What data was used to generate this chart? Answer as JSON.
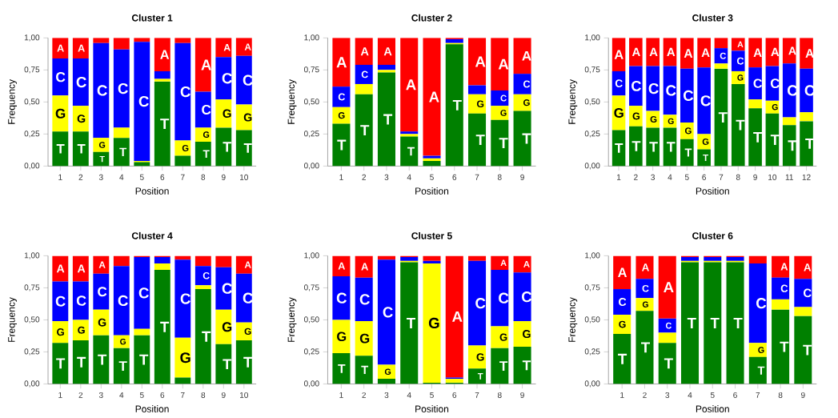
{
  "chart_data": [
    {
      "type": "bar",
      "stacked": true,
      "title": "Cluster 1",
      "xlabel": "Position",
      "ylabel": "Frequency",
      "categories": [
        "1",
        "2",
        "3",
        "4",
        "5",
        "6",
        "7",
        "8",
        "9",
        "10"
      ],
      "ylim": [
        0,
        1
      ],
      "yticks": [
        {
          "value": 0,
          "label": "0,00"
        },
        {
          "value": 0.25,
          "label": "0,25"
        },
        {
          "value": 0.5,
          "label": "0,50"
        },
        {
          "value": 0.75,
          "label": "0,75"
        },
        {
          "value": 1,
          "label": "1,00"
        }
      ],
      "series": [
        {
          "name": "T",
          "color": "#008000",
          "values": [
            0.27,
            0.27,
            0.11,
            0.22,
            0.03,
            0.66,
            0.08,
            0.19,
            0.3,
            0.28
          ]
        },
        {
          "name": "G",
          "color": "#ffff00",
          "values": [
            0.28,
            0.2,
            0.11,
            0.08,
            0.01,
            0.02,
            0.12,
            0.11,
            0.22,
            0.2
          ]
        },
        {
          "name": "C",
          "color": "#0000ff",
          "values": [
            0.29,
            0.37,
            0.74,
            0.61,
            0.93,
            0.06,
            0.76,
            0.28,
            0.33,
            0.38
          ]
        },
        {
          "name": "A",
          "color": "#ff0000",
          "values": [
            0.16,
            0.16,
            0.04,
            0.09,
            0.03,
            0.26,
            0.04,
            0.42,
            0.15,
            0.14
          ]
        }
      ]
    },
    {
      "type": "bar",
      "stacked": true,
      "title": "Cluster 2",
      "xlabel": "Position",
      "ylabel": "Frequency",
      "categories": [
        "1",
        "2",
        "3",
        "4",
        "5",
        "6",
        "7",
        "8",
        "9"
      ],
      "ylim": [
        0,
        1
      ],
      "yticks": [
        {
          "value": 0,
          "label": "0,00"
        },
        {
          "value": 0.25,
          "label": "0,25"
        },
        {
          "value": 0.5,
          "label": "0,50"
        },
        {
          "value": 0.75,
          "label": "0,75"
        },
        {
          "value": 1,
          "label": "1,00"
        }
      ],
      "series": [
        {
          "name": "T",
          "color": "#008000",
          "values": [
            0.33,
            0.56,
            0.73,
            0.23,
            0.04,
            0.95,
            0.41,
            0.36,
            0.43
          ]
        },
        {
          "name": "G",
          "color": "#ffff00",
          "values": [
            0.13,
            0.08,
            0.02,
            0.02,
            0.02,
            0.01,
            0.15,
            0.11,
            0.13
          ]
        },
        {
          "name": "C",
          "color": "#0000ff",
          "values": [
            0.16,
            0.15,
            0.04,
            0.02,
            0.02,
            0.03,
            0.07,
            0.12,
            0.16
          ]
        },
        {
          "name": "A",
          "color": "#ff0000",
          "values": [
            0.38,
            0.21,
            0.21,
            0.73,
            0.92,
            0.01,
            0.37,
            0.41,
            0.28
          ]
        }
      ]
    },
    {
      "type": "bar",
      "stacked": true,
      "title": "Cluster 3",
      "xlabel": "Position",
      "ylabel": "Frequency",
      "categories": [
        "1",
        "2",
        "3",
        "4",
        "5",
        "6",
        "7",
        "8",
        "9",
        "10",
        "11",
        "12"
      ],
      "ylim": [
        0,
        1
      ],
      "yticks": [
        {
          "value": 0,
          "label": "0,00"
        },
        {
          "value": 0.25,
          "label": "0,25"
        },
        {
          "value": 0.5,
          "label": "0,50"
        },
        {
          "value": 0.75,
          "label": "0,75"
        },
        {
          "value": 1,
          "label": "1,00"
        }
      ],
      "series": [
        {
          "name": "T",
          "color": "#008000",
          "values": [
            0.28,
            0.31,
            0.3,
            0.3,
            0.21,
            0.13,
            0.76,
            0.64,
            0.45,
            0.41,
            0.32,
            0.35
          ]
        },
        {
          "name": "G",
          "color": "#ffff00",
          "values": [
            0.27,
            0.16,
            0.13,
            0.1,
            0.13,
            0.12,
            0.04,
            0.1,
            0.07,
            0.1,
            0.06,
            0.07
          ]
        },
        {
          "name": "C",
          "color": "#0000ff",
          "values": [
            0.19,
            0.31,
            0.35,
            0.38,
            0.42,
            0.52,
            0.12,
            0.16,
            0.25,
            0.27,
            0.42,
            0.34
          ]
        },
        {
          "name": "A",
          "color": "#ff0000",
          "values": [
            0.26,
            0.22,
            0.22,
            0.22,
            0.24,
            0.23,
            0.08,
            0.1,
            0.23,
            0.22,
            0.2,
            0.24
          ]
        }
      ]
    },
    {
      "type": "bar",
      "stacked": true,
      "title": "Cluster 4",
      "xlabel": "Position",
      "ylabel": "Frequency",
      "categories": [
        "1",
        "2",
        "3",
        "4",
        "5",
        "6",
        "7",
        "8",
        "9",
        "10"
      ],
      "ylim": [
        0,
        1
      ],
      "yticks": [
        {
          "value": 0,
          "label": "0,00"
        },
        {
          "value": 0.25,
          "label": "0,25"
        },
        {
          "value": 0.5,
          "label": "0,50"
        },
        {
          "value": 0.75,
          "label": "0,75"
        },
        {
          "value": 1,
          "label": "1,00"
        }
      ],
      "series": [
        {
          "name": "T",
          "color": "#008000",
          "values": [
            0.32,
            0.34,
            0.38,
            0.28,
            0.38,
            0.89,
            0.05,
            0.74,
            0.31,
            0.34
          ]
        },
        {
          "name": "G",
          "color": "#ffff00",
          "values": [
            0.17,
            0.16,
            0.2,
            0.1,
            0.05,
            0.05,
            0.31,
            0.03,
            0.27,
            0.14
          ]
        },
        {
          "name": "C",
          "color": "#0000ff",
          "values": [
            0.31,
            0.3,
            0.28,
            0.54,
            0.56,
            0.05,
            0.61,
            0.15,
            0.33,
            0.38
          ]
        },
        {
          "name": "A",
          "color": "#ff0000",
          "values": [
            0.2,
            0.2,
            0.14,
            0.08,
            0.01,
            0.01,
            0.03,
            0.08,
            0.09,
            0.14
          ]
        }
      ]
    },
    {
      "type": "bar",
      "stacked": true,
      "title": "Cluster 5",
      "xlabel": "Position",
      "ylabel": "Frequency",
      "categories": [
        "1",
        "2",
        "3",
        "4",
        "5",
        "6",
        "7",
        "8",
        "9"
      ],
      "ylim": [
        0,
        1
      ],
      "yticks": [
        {
          "value": 0,
          "label": "0,00"
        },
        {
          "value": 0.25,
          "label": "0,25"
        },
        {
          "value": 0.5,
          "label": "0,50"
        },
        {
          "value": 0.75,
          "label": "0,75"
        },
        {
          "value": 1,
          "label": "1,00"
        }
      ],
      "series": [
        {
          "name": "T",
          "color": "#008000",
          "values": [
            0.24,
            0.22,
            0.04,
            0.95,
            0.01,
            0.01,
            0.12,
            0.28,
            0.29
          ]
        },
        {
          "name": "G",
          "color": "#ffff00",
          "values": [
            0.26,
            0.27,
            0.11,
            0.01,
            0.93,
            0.03,
            0.18,
            0.17,
            0.2
          ]
        },
        {
          "name": "C",
          "color": "#0000ff",
          "values": [
            0.34,
            0.34,
            0.82,
            0.03,
            0.02,
            0.01,
            0.66,
            0.44,
            0.38
          ]
        },
        {
          "name": "A",
          "color": "#ff0000",
          "values": [
            0.16,
            0.17,
            0.03,
            0.01,
            0.04,
            0.95,
            0.04,
            0.11,
            0.13
          ]
        }
      ]
    },
    {
      "type": "bar",
      "stacked": true,
      "title": "Cluster 6",
      "xlabel": "Position",
      "ylabel": "Frequency",
      "categories": [
        "1",
        "2",
        "3",
        "4",
        "5",
        "6",
        "7",
        "8",
        "9"
      ],
      "ylim": [
        0,
        1
      ],
      "yticks": [
        {
          "value": 0,
          "label": "0,00"
        },
        {
          "value": 0.25,
          "label": "0,25"
        },
        {
          "value": 0.5,
          "label": "0,50"
        },
        {
          "value": 0.75,
          "label": "0,75"
        },
        {
          "value": 1,
          "label": "1,00"
        }
      ],
      "series": [
        {
          "name": "T",
          "color": "#008000",
          "values": [
            0.39,
            0.57,
            0.32,
            0.95,
            0.95,
            0.95,
            0.21,
            0.58,
            0.53
          ]
        },
        {
          "name": "G",
          "color": "#ffff00",
          "values": [
            0.15,
            0.1,
            0.08,
            0.01,
            0.01,
            0.01,
            0.11,
            0.08,
            0.07
          ]
        },
        {
          "name": "C",
          "color": "#0000ff",
          "values": [
            0.2,
            0.15,
            0.11,
            0.03,
            0.03,
            0.03,
            0.62,
            0.17,
            0.22
          ]
        },
        {
          "name": "A",
          "color": "#ff0000",
          "values": [
            0.26,
            0.18,
            0.49,
            0.01,
            0.01,
            0.01,
            0.06,
            0.17,
            0.18
          ]
        }
      ]
    }
  ]
}
